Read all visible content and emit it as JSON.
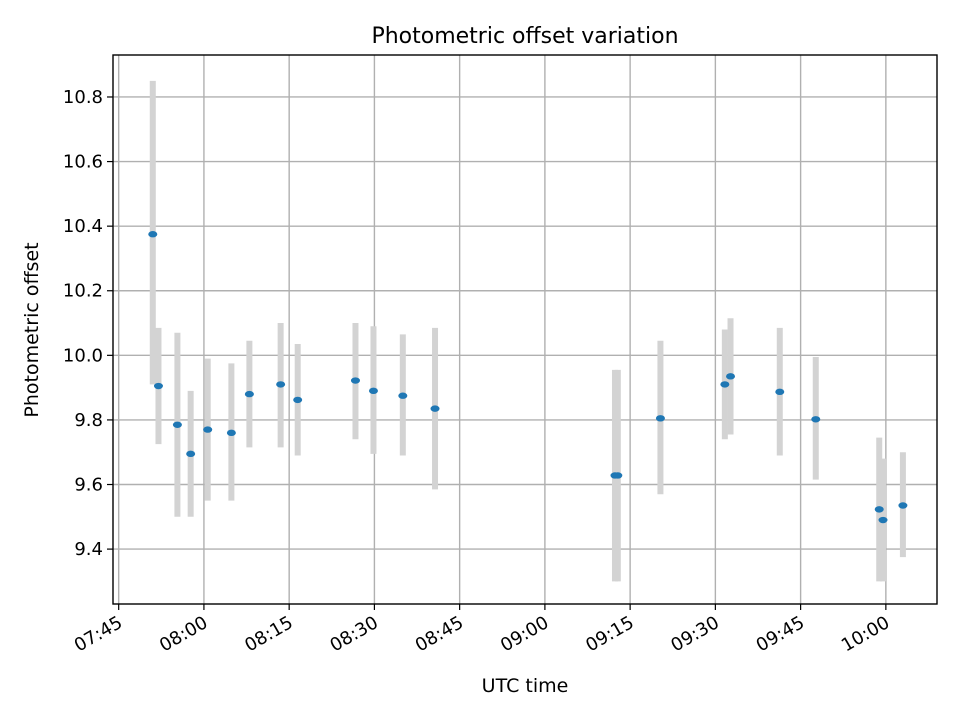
{
  "chart_data": {
    "type": "scatter",
    "title": "Photometric offset variation",
    "xlabel": "UTC time",
    "ylabel": "Photometric offset",
    "xlim": [
      "07:44",
      "10:09"
    ],
    "ylim": [
      9.23,
      10.93
    ],
    "x_ticks": [
      "07:45",
      "08:00",
      "08:15",
      "08:30",
      "08:45",
      "09:00",
      "09:15",
      "09:30",
      "09:45",
      "10:00"
    ],
    "y_ticks": [
      "9.4",
      "9.6",
      "9.8",
      "10.0",
      "10.2",
      "10.4",
      "10.6",
      "10.8"
    ],
    "grid": true,
    "colors": {
      "point": "#1f77b4",
      "error_bar": "#d3d3d3",
      "grid": "#b0b0b0"
    },
    "series": [
      {
        "points": [
          {
            "time": "07:51:00",
            "y": 10.375,
            "ylow": 9.91,
            "yhigh": 10.85
          },
          {
            "time": "07:52:00",
            "y": 9.905,
            "ylow": 9.725,
            "yhigh": 10.085
          },
          {
            "time": "07:55:20",
            "y": 9.785,
            "ylow": 9.5,
            "yhigh": 10.07
          },
          {
            "time": "07:57:40",
            "y": 9.695,
            "ylow": 9.5,
            "yhigh": 9.89
          },
          {
            "time": "08:00:40",
            "y": 9.77,
            "ylow": 9.55,
            "yhigh": 9.99
          },
          {
            "time": "08:04:50",
            "y": 9.76,
            "ylow": 9.55,
            "yhigh": 9.975
          },
          {
            "time": "08:08:00",
            "y": 9.88,
            "ylow": 9.715,
            "yhigh": 10.045
          },
          {
            "time": "08:13:30",
            "y": 9.91,
            "ylow": 9.715,
            "yhigh": 10.1
          },
          {
            "time": "08:16:30",
            "y": 9.862,
            "ylow": 9.69,
            "yhigh": 10.035
          },
          {
            "time": "08:26:40",
            "y": 9.922,
            "ylow": 9.74,
            "yhigh": 10.1
          },
          {
            "time": "08:29:50",
            "y": 9.89,
            "ylow": 9.695,
            "yhigh": 10.09
          },
          {
            "time": "08:35:00",
            "y": 9.875,
            "ylow": 9.69,
            "yhigh": 10.065
          },
          {
            "time": "08:40:40",
            "y": 9.835,
            "ylow": 9.585,
            "yhigh": 10.085
          },
          {
            "time": "09:12:20",
            "y": 9.628,
            "ylow": 9.3,
            "yhigh": 9.955
          },
          {
            "time": "09:12:50",
            "y": 9.628,
            "ylow": 9.3,
            "yhigh": 9.955
          },
          {
            "time": "09:20:20",
            "y": 9.805,
            "ylow": 9.57,
            "yhigh": 10.045
          },
          {
            "time": "09:31:40",
            "y": 9.91,
            "ylow": 9.74,
            "yhigh": 10.08
          },
          {
            "time": "09:32:40",
            "y": 9.935,
            "ylow": 9.755,
            "yhigh": 10.115
          },
          {
            "time": "09:41:20",
            "y": 9.887,
            "ylow": 9.69,
            "yhigh": 10.085
          },
          {
            "time": "09:47:40",
            "y": 9.802,
            "ylow": 9.615,
            "yhigh": 9.995
          },
          {
            "time": "09:58:50",
            "y": 9.523,
            "ylow": 9.3,
            "yhigh": 9.745
          },
          {
            "time": "09:59:30",
            "y": 9.49,
            "ylow": 9.3,
            "yhigh": 9.68
          },
          {
            "time": "10:03:00",
            "y": 9.535,
            "ylow": 9.375,
            "yhigh": 9.7
          }
        ]
      }
    ]
  }
}
